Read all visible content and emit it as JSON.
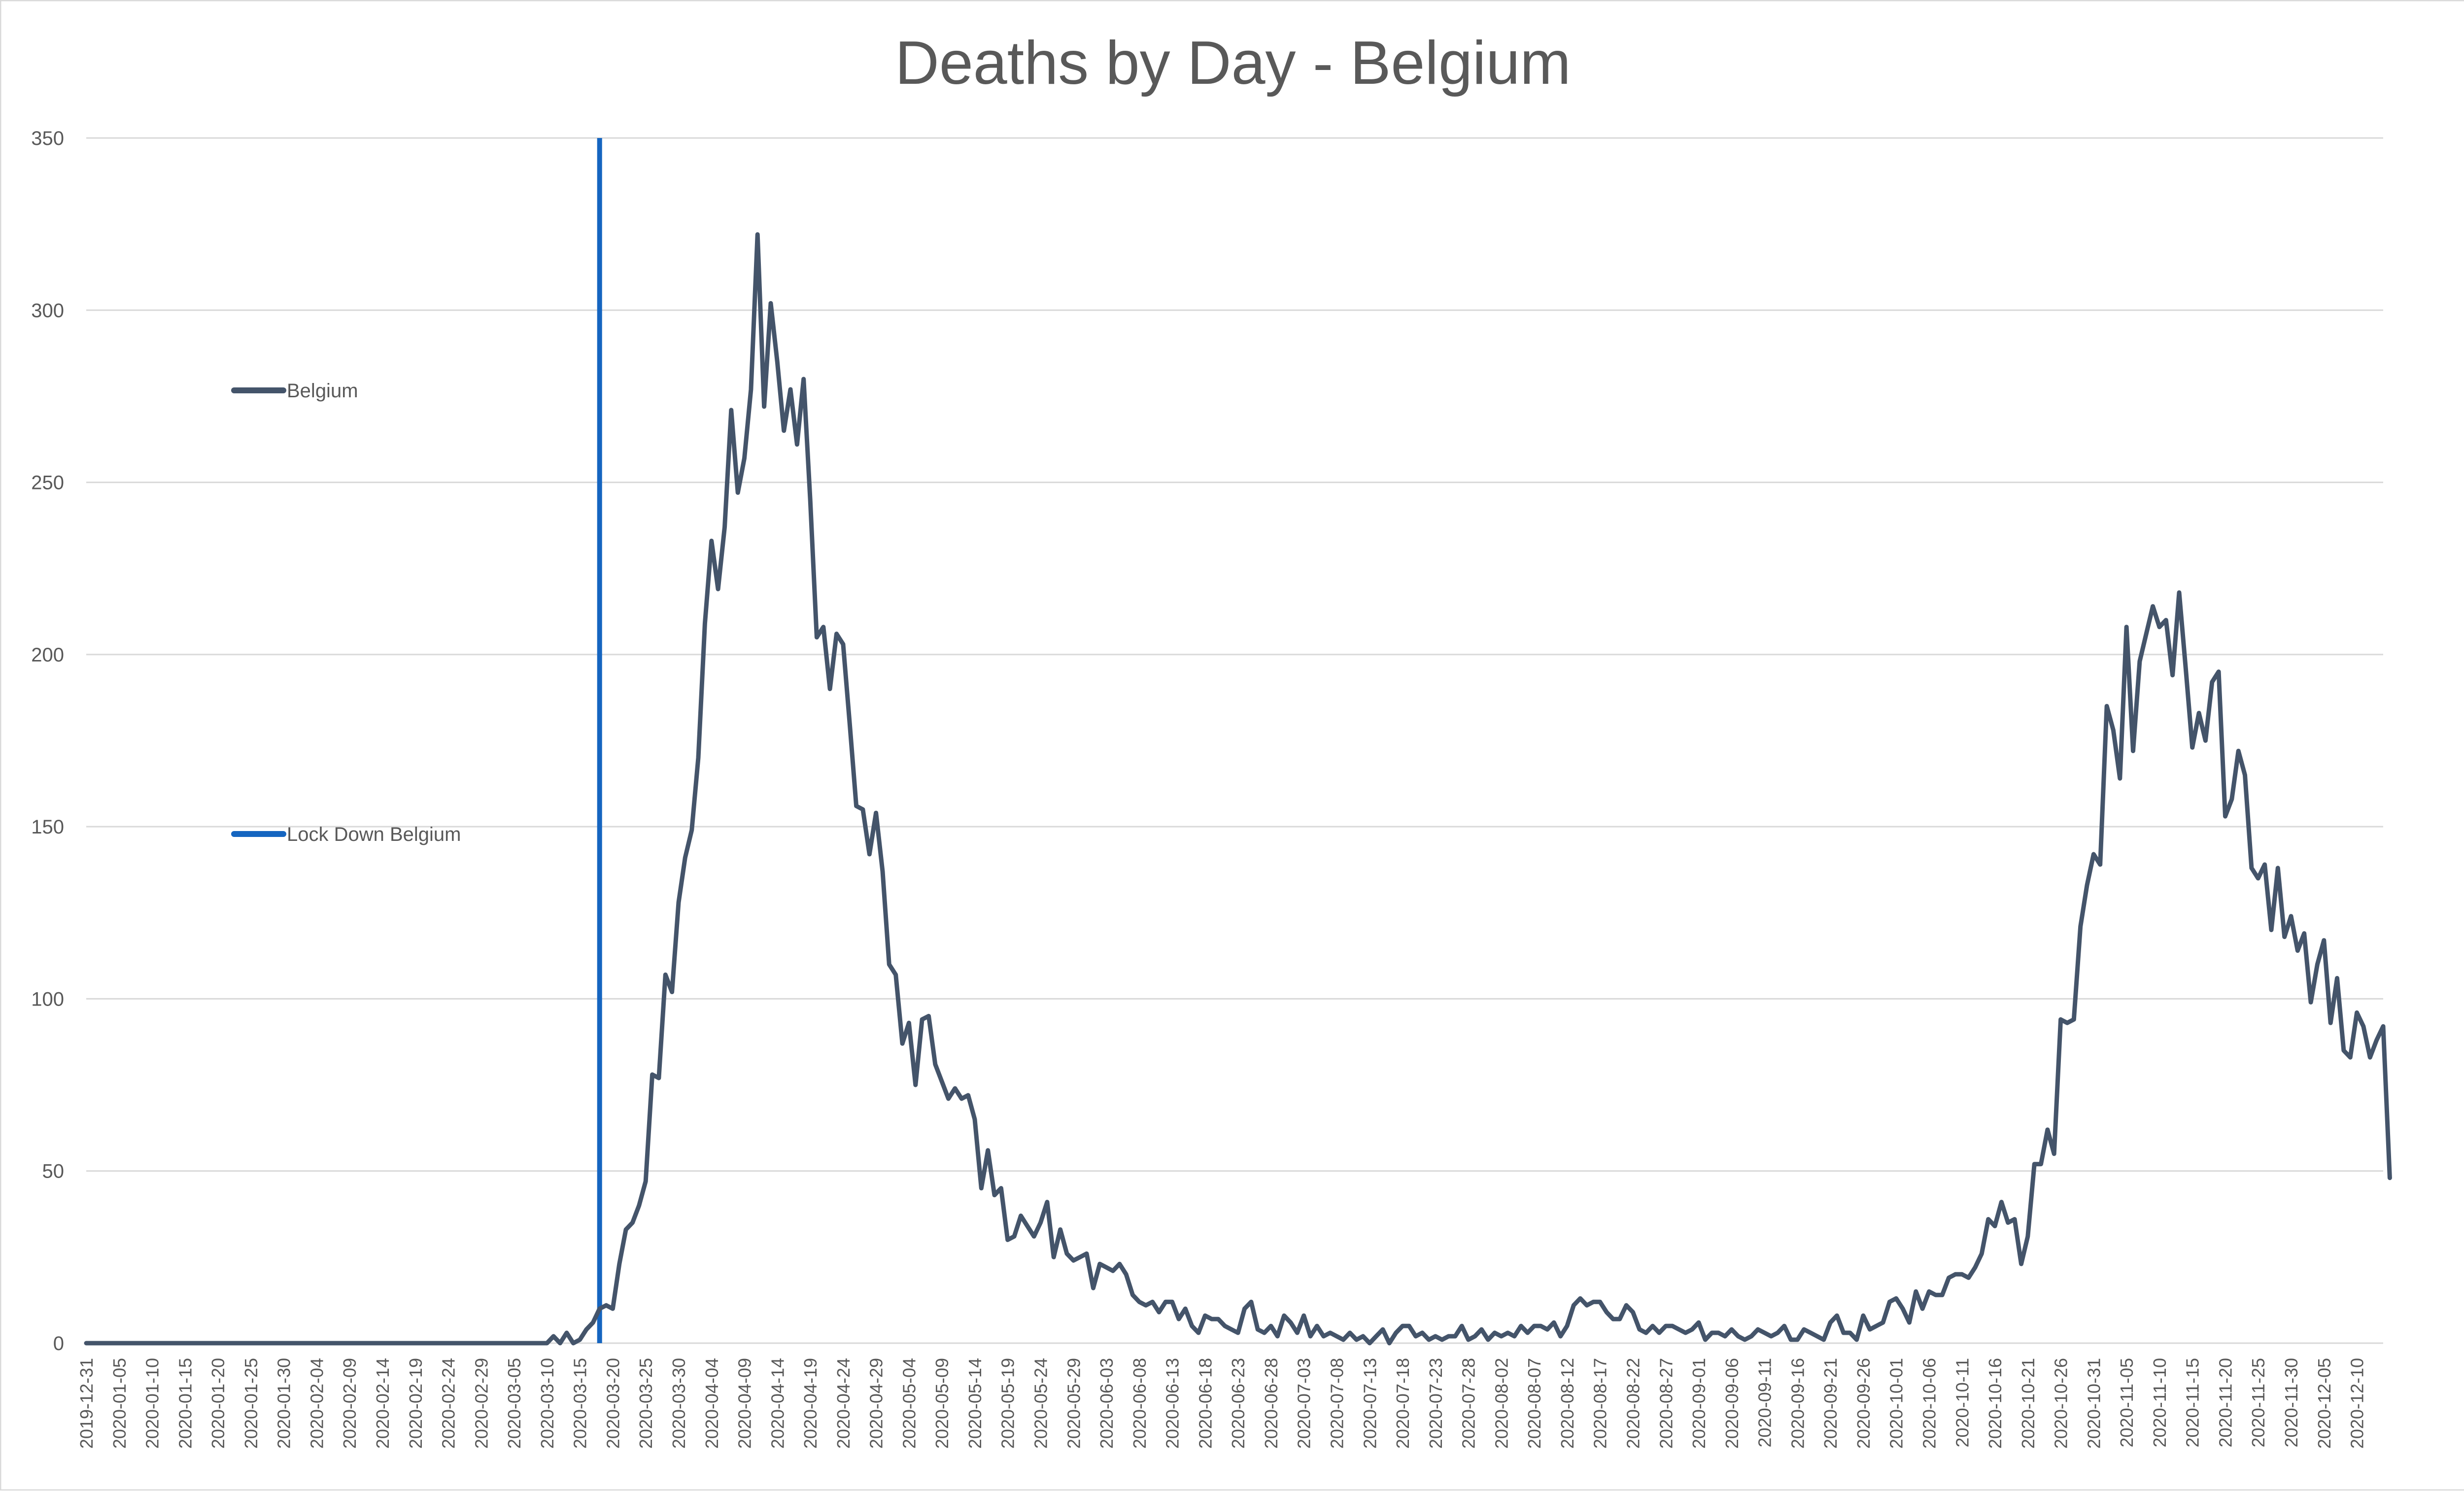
{
  "chart_data": {
    "type": "line",
    "title": "Deaths by Day - Belgium",
    "xlabel": "",
    "ylabel": "",
    "ylim": [
      0,
      350
    ],
    "yticks": [
      0,
      50,
      100,
      150,
      200,
      250,
      300,
      350
    ],
    "grid": true,
    "x_start": "2019-12-31",
    "x_end": "2020-12-14",
    "x_tick_labels": [
      "2019-12-31",
      "2020-01-05",
      "2020-01-10",
      "2020-01-15",
      "2020-01-20",
      "2020-01-25",
      "2020-01-30",
      "2020-02-04",
      "2020-02-09",
      "2020-02-14",
      "2020-02-19",
      "2020-02-24",
      "2020-02-29",
      "2020-03-05",
      "2020-03-10",
      "2020-03-15",
      "2020-03-20",
      "2020-03-25",
      "2020-03-30",
      "2020-04-04",
      "2020-04-09",
      "2020-04-14",
      "2020-04-19",
      "2020-04-24",
      "2020-04-29",
      "2020-05-04",
      "2020-05-09",
      "2020-05-14",
      "2020-05-19",
      "2020-05-24",
      "2020-05-29",
      "2020-06-03",
      "2020-06-08",
      "2020-06-13",
      "2020-06-18",
      "2020-06-23",
      "2020-06-28",
      "2020-07-03",
      "2020-07-08",
      "2020-07-13",
      "2020-07-18",
      "2020-07-23",
      "2020-07-28",
      "2020-08-02",
      "2020-08-07",
      "2020-08-12",
      "2020-08-17",
      "2020-08-22",
      "2020-08-27",
      "2020-09-01",
      "2020-09-06",
      "2020-09-11",
      "2020-09-16",
      "2020-09-21",
      "2020-09-26",
      "2020-10-01",
      "2020-10-06",
      "2020-10-11",
      "2020-10-16",
      "2020-10-21",
      "2020-10-26",
      "2020-10-31",
      "2020-11-05",
      "2020-11-10",
      "2020-11-15",
      "2020-11-20",
      "2020-11-25",
      "2020-11-30",
      "2020-12-05",
      "2020-12-10"
    ],
    "legend": [
      {
        "name": "Belgium",
        "color": "#44546a"
      },
      {
        "name": "Lock Down Belgium",
        "color": "#1565c0"
      }
    ],
    "series": [
      {
        "name": "Belgium",
        "color": "#44546a",
        "segments": [
          {
            "from": "2019-12-31",
            "values": [
              0,
              0,
              0,
              0,
              0,
              0,
              0,
              0,
              0,
              0,
              0,
              0,
              0,
              0,
              0,
              0,
              0,
              0,
              0,
              0,
              0,
              0,
              0,
              0,
              0,
              0,
              0,
              0,
              0,
              0,
              0,
              0,
              0,
              0,
              0,
              0,
              0,
              0,
              0,
              0,
              0,
              0,
              0,
              0,
              0,
              0,
              0,
              0,
              0,
              0,
              0,
              0,
              0,
              0,
              0,
              0,
              0,
              0,
              0,
              0,
              0,
              0,
              0,
              0,
              0,
              0,
              0,
              0,
              0,
              0,
              0
            ]
          },
          {
            "from": "2020-03-11",
            "values": [
              2,
              0,
              3,
              0,
              1,
              4,
              6,
              10,
              11,
              10,
              23,
              33,
              35,
              40,
              47,
              78,
              77,
              107,
              102,
              128,
              141,
              149,
              170,
              209,
              233,
              219,
              237,
              271,
              247,
              257,
              277,
              322,
              272,
              302,
              285,
              265,
              277,
              261,
              280,
              245,
              205,
              208,
              190,
              206,
              203,
              180,
              156,
              155,
              142,
              154,
              137,
              110,
              107,
              87,
              93,
              75,
              94,
              95,
              81,
              76,
              71,
              74,
              71,
              72,
              65,
              45,
              56,
              43,
              45,
              30,
              31,
              37,
              34,
              31,
              35,
              41,
              25,
              33,
              26,
              24,
              25,
              26,
              16,
              23,
              22,
              21,
              23,
              20,
              14,
              12,
              11,
              12,
              9,
              12,
              12,
              7,
              10,
              5,
              3,
              8,
              7,
              7,
              5,
              4,
              3,
              10,
              12,
              4,
              3,
              5,
              2,
              8,
              6,
              3,
              8,
              2,
              5,
              2,
              3,
              2,
              1,
              3,
              1,
              2,
              0,
              2,
              4,
              0,
              3,
              5,
              5,
              2,
              3,
              1,
              2,
              1,
              2,
              2,
              5,
              1,
              2,
              4,
              1,
              3,
              2,
              3,
              2,
              5,
              3,
              5,
              5,
              4,
              6,
              2,
              5,
              11,
              13,
              11,
              12,
              12,
              9,
              7,
              7,
              11,
              9,
              4,
              3,
              5,
              3,
              5,
              5,
              4,
              3,
              4,
              6,
              1,
              3,
              3,
              2,
              4,
              2,
              1,
              2,
              4,
              3,
              2,
              3,
              5,
              1,
              1,
              4,
              3,
              2,
              1,
              6,
              8,
              3,
              3,
              1,
              8,
              4,
              5,
              6,
              12,
              13,
              10,
              6,
              15,
              10,
              15,
              14,
              14,
              19,
              20,
              20,
              19,
              22,
              26,
              36,
              34,
              41,
              35,
              36,
              23,
              31,
              52,
              52,
              62,
              55,
              94,
              93,
              94,
              121,
              133,
              142,
              139,
              185,
              178,
              164,
              208,
              172,
              198,
              206,
              214,
              208,
              210,
              194,
              218,
              196,
              173,
              183,
              175,
              192,
              195,
              153,
              158,
              172,
              165,
              138,
              135,
              139,
              120,
              138,
              118,
              124,
              114,
              119,
              99,
              110,
              117,
              93,
              106,
              85,
              83,
              96,
              92,
              83,
              88,
              92,
              48
            ]
          }
        ]
      }
    ],
    "annotations": [
      {
        "type": "vline",
        "x": "2020-03-18",
        "label": "Lock Down Belgium",
        "color": "#1565c0"
      }
    ]
  }
}
